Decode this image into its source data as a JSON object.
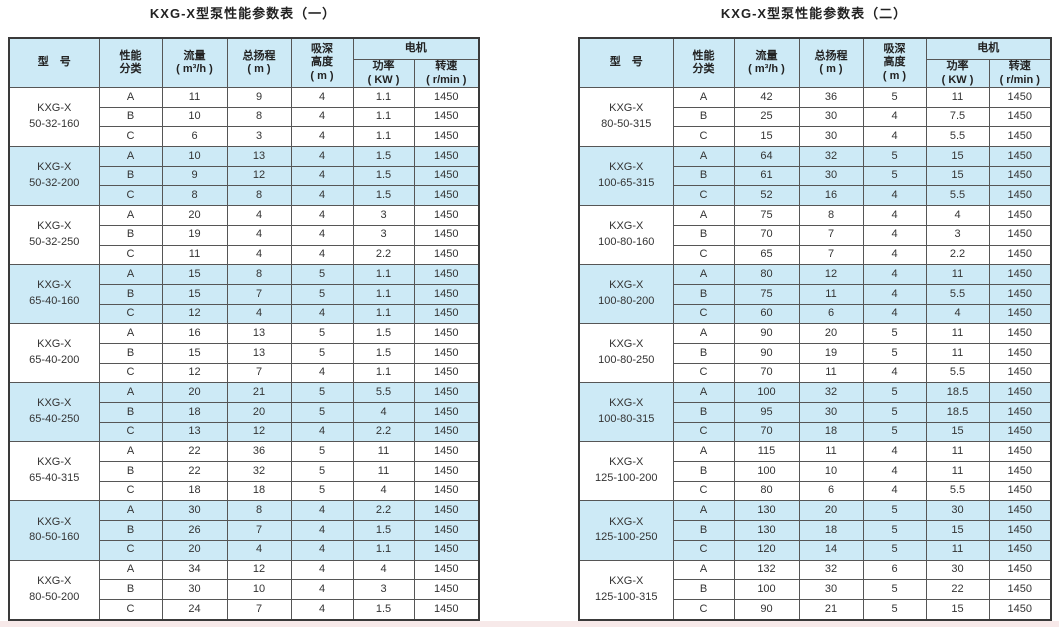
{
  "doc": {
    "tables": [
      {
        "title": "KXG-X型泵性能参数表（一）",
        "header": {
          "model": "型　号",
          "perf_class": "性能\n分类",
          "flow": "流量\n( m³/h )",
          "head": "总扬程\n( m )",
          "suction": "吸深\n高度\n( m )",
          "motor": "电机",
          "power": "功率\n( KW )",
          "speed": "转速\n( r/min )"
        },
        "groups": [
          {
            "model": "KXG-X\n50-32-160",
            "rows": [
              [
                "A",
                "11",
                "9",
                "4",
                "1.1",
                "1450"
              ],
              [
                "B",
                "10",
                "8",
                "4",
                "1.1",
                "1450"
              ],
              [
                "C",
                "6",
                "3",
                "4",
                "1.1",
                "1450"
              ]
            ]
          },
          {
            "model": "KXG-X\n50-32-200",
            "rows": [
              [
                "A",
                "10",
                "13",
                "4",
                "1.5",
                "1450"
              ],
              [
                "B",
                "9",
                "12",
                "4",
                "1.5",
                "1450"
              ],
              [
                "C",
                "8",
                "8",
                "4",
                "1.5",
                "1450"
              ]
            ]
          },
          {
            "model": "KXG-X\n50-32-250",
            "rows": [
              [
                "A",
                "20",
                "4",
                "4",
                "3",
                "1450"
              ],
              [
                "B",
                "19",
                "4",
                "4",
                "3",
                "1450"
              ],
              [
                "C",
                "11",
                "4",
                "4",
                "2.2",
                "1450"
              ]
            ]
          },
          {
            "model": "KXG-X\n65-40-160",
            "rows": [
              [
                "A",
                "15",
                "8",
                "5",
                "1.1",
                "1450"
              ],
              [
                "B",
                "15",
                "7",
                "5",
                "1.1",
                "1450"
              ],
              [
                "C",
                "12",
                "4",
                "4",
                "1.1",
                "1450"
              ]
            ]
          },
          {
            "model": "KXG-X\n65-40-200",
            "rows": [
              [
                "A",
                "16",
                "13",
                "5",
                "1.5",
                "1450"
              ],
              [
                "B",
                "15",
                "13",
                "5",
                "1.5",
                "1450"
              ],
              [
                "C",
                "12",
                "7",
                "4",
                "1.1",
                "1450"
              ]
            ]
          },
          {
            "model": "KXG-X\n65-40-250",
            "rows": [
              [
                "A",
                "20",
                "21",
                "5",
                "5.5",
                "1450"
              ],
              [
                "B",
                "18",
                "20",
                "5",
                "4",
                "1450"
              ],
              [
                "C",
                "13",
                "12",
                "4",
                "2.2",
                "1450"
              ]
            ]
          },
          {
            "model": "KXG-X\n65-40-315",
            "rows": [
              [
                "A",
                "22",
                "36",
                "5",
                "11",
                "1450"
              ],
              [
                "B",
                "22",
                "32",
                "5",
                "11",
                "1450"
              ],
              [
                "C",
                "18",
                "18",
                "5",
                "4",
                "1450"
              ]
            ]
          },
          {
            "model": "KXG-X\n80-50-160",
            "rows": [
              [
                "A",
                "30",
                "8",
                "4",
                "2.2",
                "1450"
              ],
              [
                "B",
                "26",
                "7",
                "4",
                "1.5",
                "1450"
              ],
              [
                "C",
                "20",
                "4",
                "4",
                "1.1",
                "1450"
              ]
            ]
          },
          {
            "model": "KXG-X\n80-50-200",
            "rows": [
              [
                "A",
                "34",
                "12",
                "4",
                "4",
                "1450"
              ],
              [
                "B",
                "30",
                "10",
                "4",
                "3",
                "1450"
              ],
              [
                "C",
                "24",
                "7",
                "4",
                "1.5",
                "1450"
              ]
            ]
          }
        ]
      },
      {
        "title": "KXG-X型泵性能参数表（二）",
        "header": {
          "model": "型　号",
          "perf_class": "性能\n分类",
          "flow": "流量\n( m³/h )",
          "head": "总扬程\n( m )",
          "suction": "吸深\n高度\n( m )",
          "motor": "电机",
          "power": "功率\n( KW )",
          "speed": "转速\n( r/min )"
        },
        "groups": [
          {
            "model": "KXG-X\n80-50-315",
            "rows": [
              [
                "A",
                "42",
                "36",
                "5",
                "11",
                "1450"
              ],
              [
                "B",
                "25",
                "30",
                "4",
                "7.5",
                "1450"
              ],
              [
                "C",
                "15",
                "30",
                "4",
                "5.5",
                "1450"
              ]
            ]
          },
          {
            "model": "KXG-X\n100-65-315",
            "rows": [
              [
                "A",
                "64",
                "32",
                "5",
                "15",
                "1450"
              ],
              [
                "B",
                "61",
                "30",
                "5",
                "15",
                "1450"
              ],
              [
                "C",
                "52",
                "16",
                "4",
                "5.5",
                "1450"
              ]
            ]
          },
          {
            "model": "KXG-X\n100-80-160",
            "rows": [
              [
                "A",
                "75",
                "8",
                "4",
                "4",
                "1450"
              ],
              [
                "B",
                "70",
                "7",
                "4",
                "3",
                "1450"
              ],
              [
                "C",
                "65",
                "7",
                "4",
                "2.2",
                "1450"
              ]
            ]
          },
          {
            "model": "KXG-X\n100-80-200",
            "rows": [
              [
                "A",
                "80",
                "12",
                "4",
                "11",
                "1450"
              ],
              [
                "B",
                "75",
                "11",
                "4",
                "5.5",
                "1450"
              ],
              [
                "C",
                "60",
                "6",
                "4",
                "4",
                "1450"
              ]
            ]
          },
          {
            "model": "KXG-X\n100-80-250",
            "rows": [
              [
                "A",
                "90",
                "20",
                "5",
                "11",
                "1450"
              ],
              [
                "B",
                "90",
                "19",
                "5",
                "11",
                "1450"
              ],
              [
                "C",
                "70",
                "11",
                "4",
                "5.5",
                "1450"
              ]
            ]
          },
          {
            "model": "KXG-X\n100-80-315",
            "rows": [
              [
                "A",
                "100",
                "32",
                "5",
                "18.5",
                "1450"
              ],
              [
                "B",
                "95",
                "30",
                "5",
                "18.5",
                "1450"
              ],
              [
                "C",
                "70",
                "18",
                "5",
                "15",
                "1450"
              ]
            ]
          },
          {
            "model": "KXG-X\n125-100-200",
            "rows": [
              [
                "A",
                "115",
                "11",
                "4",
                "11",
                "1450"
              ],
              [
                "B",
                "100",
                "10",
                "4",
                "11",
                "1450"
              ],
              [
                "C",
                "80",
                "6",
                "4",
                "5.5",
                "1450"
              ]
            ]
          },
          {
            "model": "KXG-X\n125-100-250",
            "rows": [
              [
                "A",
                "130",
                "20",
                "5",
                "30",
                "1450"
              ],
              [
                "B",
                "130",
                "18",
                "5",
                "15",
                "1450"
              ],
              [
                "C",
                "120",
                "14",
                "5",
                "11",
                "1450"
              ]
            ]
          },
          {
            "model": "KXG-X\n125-100-315",
            "rows": [
              [
                "A",
                "132",
                "32",
                "6",
                "30",
                "1450"
              ],
              [
                "B",
                "100",
                "30",
                "5",
                "22",
                "1450"
              ],
              [
                "C",
                "90",
                "21",
                "5",
                "15",
                "1450"
              ]
            ]
          }
        ]
      }
    ]
  },
  "colors": {
    "highlight_row": "#cdeaf6",
    "header_background": "#cdeaf6",
    "border": "#565656",
    "outer_border": "#3a3a3a",
    "text": "#333333",
    "page_background": "#ffffff"
  }
}
